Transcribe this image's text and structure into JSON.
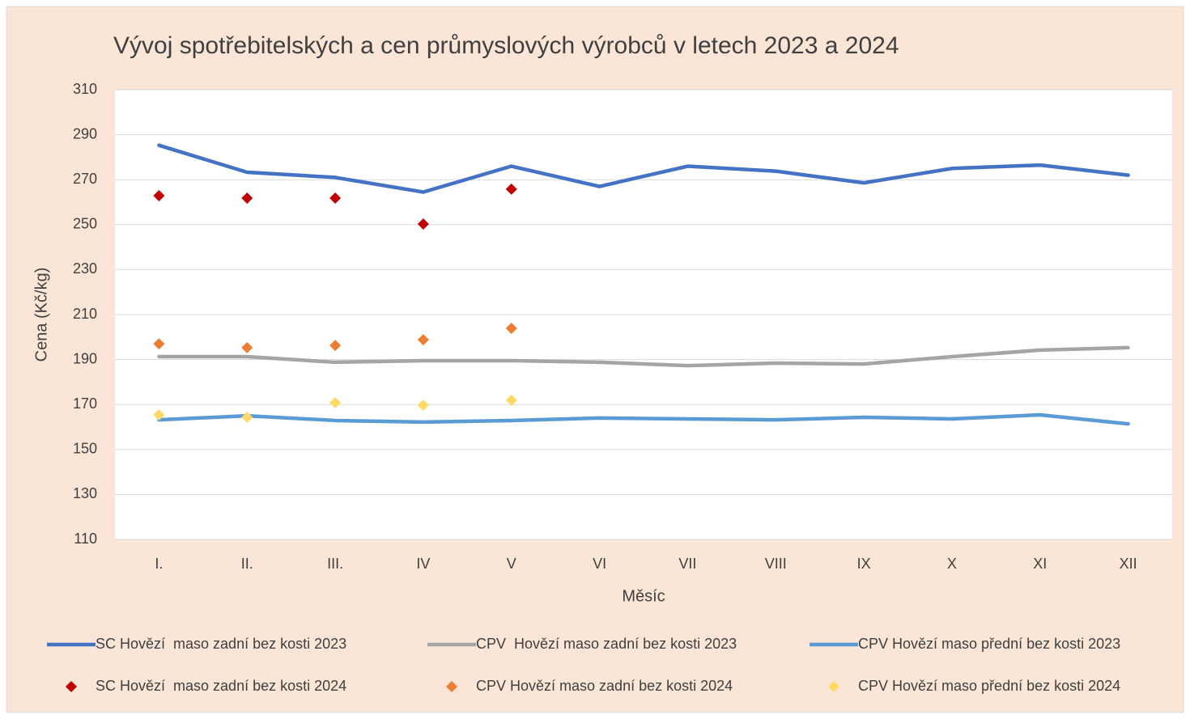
{
  "chart_data": {
    "type": "line",
    "title": "Vývoj spotřebitelských a cen průmyslových výrobců v letech 2023 a 2024",
    "x_label": "Měsíc",
    "y_label": "Cena (Kč/kg)",
    "categories": [
      "I.",
      "II.",
      "III.",
      "IV",
      "V",
      "VI",
      "VII",
      "VIII",
      "IX",
      "X",
      "XI",
      "XII"
    ],
    "ylim": [
      110,
      310
    ],
    "yticks": [
      110,
      130,
      150,
      170,
      190,
      210,
      230,
      250,
      270,
      290,
      310
    ],
    "grid": true,
    "legend": "bottom",
    "series": [
      {
        "name": "SC Hovězí  maso zadní bez kosti 2023",
        "mode": "line",
        "color": "#4472c4",
        "values": [
          285.3,
          273.3,
          271,
          264.5,
          276,
          267,
          276,
          273.8,
          268.6,
          275,
          276.5,
          272
        ]
      },
      {
        "name": "CPV  Hovězí maso zadní bez kosti 2023",
        "mode": "line",
        "color": "#a5a5a5",
        "values": [
          191.3,
          191.3,
          188.8,
          189.5,
          189.5,
          188.8,
          187.3,
          188.4,
          188,
          191.3,
          194.2,
          195.3
        ]
      },
      {
        "name": "CPV Hovězí maso přední bez kosti 2023",
        "mode": "line",
        "color": "#5b9bd5",
        "values": [
          163.2,
          165,
          162.9,
          162.2,
          162.9,
          164,
          163.6,
          163.2,
          164.3,
          163.6,
          165.4,
          161.4
        ]
      },
      {
        "name": "SC Hovězí  maso zadní bez kosti 2024",
        "mode": "markers",
        "color": "#c00000",
        "values": [
          262.9,
          261.8,
          261.8,
          250.3,
          265.8,
          null,
          null,
          null,
          null,
          null,
          null,
          null
        ]
      },
      {
        "name": "CPV Hovězí maso zadní bez kosti 2024",
        "mode": "markers",
        "color": "#ed7d31",
        "values": [
          197,
          195.3,
          196.3,
          198.8,
          203.9,
          null,
          null,
          null,
          null,
          null,
          null,
          null
        ]
      },
      {
        "name": "CPV Hovězí maso přední bez kosti 2024",
        "mode": "markers",
        "color": "#ffd966",
        "values": [
          165.4,
          164.3,
          170.8,
          169.7,
          171.9,
          null,
          null,
          null,
          null,
          null,
          null,
          null
        ]
      }
    ]
  }
}
